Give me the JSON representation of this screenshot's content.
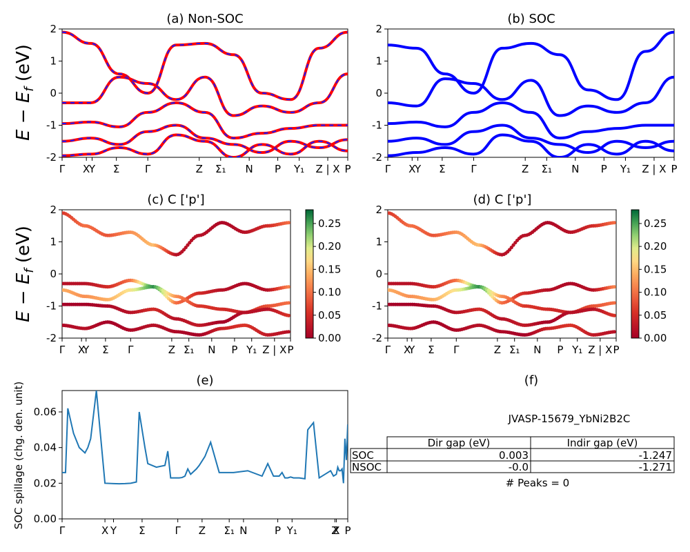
{
  "titles": {
    "a": "(a) Non-SOC",
    "b": "(b) SOC",
    "c": "(c)  C ['p']",
    "d": "(d) C ['p']",
    "e": "(e)",
    "f": "(f)"
  },
  "ylabel_energy": "E − E_f (eV)",
  "ylabel_spillage": "SOC spillage (chg. den. unit)",
  "colors": {
    "nonsoc_red": "#ff0000",
    "nonsoc_blue": "#1a1aff",
    "soc_blue": "#0000ff",
    "spillage_line": "#1f77b4"
  },
  "band_xticks": [
    "Γ",
    "X",
    "Y",
    "Σ",
    "Γ",
    "Z",
    "Σ₁",
    "N",
    "P",
    "Y₁",
    "Z | X",
    "P"
  ],
  "spill_xticks": [
    "Γ",
    "X",
    "Y",
    "Σ",
    "Γ",
    "Z",
    "Σ₁",
    "N",
    "P",
    "Y₁",
    "Z",
    "X",
    "P"
  ],
  "colorbar_ticks": [
    "0.00",
    "0.05",
    "0.10",
    "0.15",
    "0.20",
    "0.25"
  ],
  "table": {
    "title": "JVASP-15679_YbNi2B2C",
    "col_headers": [
      "Dir gap (eV)",
      "Indir gap (eV)"
    ],
    "rows": [
      {
        "label": "SOC",
        "dir": "0.003",
        "indir": "-1.247"
      },
      {
        "label": "NSOC",
        "dir": "-0.0",
        "indir": "-1.271"
      }
    ],
    "peaks": "# Peaks = 0"
  },
  "chart_data": [
    {
      "type": "line",
      "title": "(a) Non-SOC",
      "ylabel": "E − E_f (eV)",
      "ylim": [
        -2,
        2
      ],
      "yticks": [
        -2,
        -1,
        0,
        1,
        2
      ],
      "xticks": [
        "Γ",
        "X",
        "Y",
        "Σ",
        "Γ",
        "Z",
        "Σ₁",
        "N",
        "P",
        "Y₁",
        "Z | X",
        "P"
      ],
      "x": [
        0,
        0.1,
        0.2,
        0.3,
        0.4,
        0.5,
        0.6,
        0.7,
        0.8,
        0.9,
        1.0
      ],
      "series": [
        {
          "values": [
            1.9,
            1.55,
            0.6,
            0.0,
            1.5,
            1.55,
            1.2,
            0.0,
            -0.2,
            1.4,
            1.9
          ]
        },
        {
          "values": [
            -0.3,
            -0.3,
            0.5,
            0.3,
            -0.2,
            0.5,
            -0.7,
            -0.4,
            -0.6,
            -0.3,
            0.6
          ]
        },
        {
          "values": [
            -0.95,
            -0.9,
            -1.05,
            -0.6,
            -0.3,
            -0.6,
            -1.4,
            -1.25,
            -1.1,
            -1.0,
            -1.0
          ]
        },
        {
          "values": [
            -1.5,
            -1.4,
            -1.6,
            -1.2,
            -1.0,
            -1.4,
            -1.6,
            -1.85,
            -1.5,
            -1.7,
            -1.45
          ]
        },
        {
          "values": [
            -1.95,
            -1.9,
            -1.7,
            -1.9,
            -1.3,
            -1.5,
            -2.0,
            -1.6,
            -1.9,
            -1.5,
            -1.8
          ]
        }
      ]
    },
    {
      "type": "line",
      "title": "(b) SOC",
      "ylim": [
        -2,
        2
      ],
      "yticks": [
        -2,
        -1,
        0,
        1,
        2
      ],
      "xticks": [
        "Γ",
        "X",
        "Y",
        "Σ",
        "Γ",
        "Z",
        "Σ₁",
        "N",
        "P",
        "Y₁",
        "Z | X",
        "P"
      ],
      "x": [
        0,
        0.1,
        0.2,
        0.3,
        0.4,
        0.5,
        0.6,
        0.7,
        0.8,
        0.9,
        1.0
      ],
      "series": [
        {
          "values": [
            1.5,
            1.4,
            0.6,
            0.0,
            1.4,
            1.55,
            1.2,
            0.1,
            -0.2,
            1.3,
            1.9
          ]
        },
        {
          "values": [
            -0.3,
            -0.4,
            0.45,
            0.3,
            -0.2,
            0.4,
            -0.7,
            -0.4,
            -0.6,
            -0.3,
            0.5
          ]
        },
        {
          "values": [
            -0.95,
            -0.9,
            -1.05,
            -0.6,
            -0.3,
            -0.6,
            -1.4,
            -1.2,
            -1.1,
            -1.0,
            -1.0
          ]
        },
        {
          "values": [
            -1.5,
            -1.4,
            -1.6,
            -1.2,
            -1.0,
            -1.4,
            -1.6,
            -1.85,
            -1.5,
            -1.7,
            -1.5
          ]
        },
        {
          "values": [
            -1.95,
            -1.85,
            -1.7,
            -1.9,
            -1.3,
            -1.5,
            -2.0,
            -1.6,
            -1.9,
            -1.5,
            -1.8
          ]
        }
      ]
    },
    {
      "type": "scatter",
      "title": "(c)  C ['p']",
      "ylabel": "E − E_f (eV)",
      "ylim": [
        -2,
        2
      ],
      "yticks": [
        -2,
        -1,
        0,
        1,
        2
      ],
      "colorbar": [
        0.0,
        0.28
      ],
      "xticks": [
        "Γ",
        "X",
        "Y",
        "Σ",
        "Γ",
        "Z",
        "Σ₁",
        "N",
        "P",
        "Y₁",
        "Z | X",
        "P"
      ],
      "x": [
        0,
        0.1,
        0.2,
        0.3,
        0.4,
        0.5,
        0.6,
        0.7,
        0.8,
        0.9,
        1.0
      ],
      "series": [
        {
          "values": [
            1.9,
            1.5,
            1.2,
            1.3,
            0.9,
            0.6,
            1.2,
            1.6,
            1.3,
            1.5,
            1.6
          ],
          "weights": [
            0.06,
            0.1,
            0.08,
            0.12,
            0.15,
            0.02,
            0.02,
            0.01,
            0.02,
            0.05,
            0.1
          ]
        },
        {
          "values": [
            -0.3,
            -0.3,
            -0.4,
            -0.2,
            -0.4,
            -0.9,
            -0.6,
            -0.5,
            -0.3,
            -0.5,
            -0.4
          ],
          "weights": [
            0.02,
            0.02,
            0.05,
            0.1,
            0.28,
            0.1,
            0.05,
            0.02,
            0.01,
            0.02,
            0.12
          ]
        },
        {
          "values": [
            -0.5,
            -0.7,
            -0.8,
            -0.5,
            -0.4,
            -0.7,
            -1.0,
            -1.1,
            -1.2,
            -1.0,
            -0.9
          ],
          "weights": [
            0.14,
            0.12,
            0.14,
            0.18,
            0.26,
            0.12,
            0.06,
            0.05,
            0.04,
            0.08,
            0.1
          ]
        },
        {
          "values": [
            -0.95,
            -0.95,
            -1.0,
            -1.2,
            -1.1,
            -1.4,
            -1.6,
            -1.5,
            -1.2,
            -1.1,
            -1.3
          ],
          "weights": [
            0.0,
            0.0,
            0.01,
            0.02,
            0.05,
            0.02,
            0.03,
            0.0,
            0.02,
            0.02,
            0.06
          ]
        },
        {
          "values": [
            -1.6,
            -1.7,
            -1.5,
            -1.75,
            -1.6,
            -1.8,
            -1.9,
            -1.7,
            -1.6,
            -1.9,
            -1.8
          ],
          "weights": [
            0.01,
            0.02,
            0.0,
            0.01,
            0.02,
            0.01,
            0.0,
            0.04,
            0.06,
            0.03,
            0.02
          ]
        }
      ]
    },
    {
      "type": "scatter",
      "title": "(d) C ['p']",
      "ylim": [
        -2,
        2
      ],
      "yticks": [
        -2,
        -1,
        0,
        1,
        2
      ],
      "colorbar": [
        0.0,
        0.28
      ],
      "xticks": [
        "Γ",
        "X",
        "Y",
        "Σ",
        "Γ",
        "Z",
        "Σ₁",
        "N",
        "P",
        "Y₁",
        "Z | X",
        "P"
      ],
      "x": [
        0,
        0.1,
        0.2,
        0.3,
        0.4,
        0.5,
        0.6,
        0.7,
        0.8,
        0.9,
        1.0
      ],
      "series": [
        {
          "values": [
            1.9,
            1.5,
            1.2,
            1.3,
            0.9,
            0.6,
            1.2,
            1.6,
            1.3,
            1.5,
            1.6
          ],
          "weights": [
            0.06,
            0.1,
            0.08,
            0.12,
            0.15,
            0.02,
            0.02,
            0.01,
            0.02,
            0.05,
            0.1
          ]
        },
        {
          "values": [
            -0.3,
            -0.3,
            -0.4,
            -0.2,
            -0.4,
            -0.9,
            -0.6,
            -0.5,
            -0.3,
            -0.5,
            -0.4
          ],
          "weights": [
            0.02,
            0.02,
            0.05,
            0.1,
            0.28,
            0.1,
            0.05,
            0.02,
            0.01,
            0.02,
            0.12
          ]
        },
        {
          "values": [
            -0.5,
            -0.7,
            -0.8,
            -0.5,
            -0.4,
            -0.7,
            -1.0,
            -1.1,
            -1.2,
            -1.0,
            -0.9
          ],
          "weights": [
            0.14,
            0.12,
            0.14,
            0.18,
            0.26,
            0.12,
            0.06,
            0.05,
            0.04,
            0.08,
            0.1
          ]
        },
        {
          "values": [
            -0.95,
            -0.95,
            -1.0,
            -1.2,
            -1.1,
            -1.4,
            -1.6,
            -1.5,
            -1.2,
            -1.1,
            -1.3
          ],
          "weights": [
            0.0,
            0.0,
            0.01,
            0.02,
            0.05,
            0.02,
            0.03,
            0.0,
            0.02,
            0.02,
            0.06
          ]
        },
        {
          "values": [
            -1.6,
            -1.7,
            -1.5,
            -1.75,
            -1.6,
            -1.8,
            -1.9,
            -1.7,
            -1.6,
            -1.9,
            -1.8
          ],
          "weights": [
            0.01,
            0.02,
            0.0,
            0.01,
            0.02,
            0.01,
            0.0,
            0.04,
            0.06,
            0.03,
            0.02
          ]
        }
      ]
    },
    {
      "type": "line",
      "title": "(e)",
      "ylabel": "SOC spillage (chg. den. unit)",
      "ylim": [
        0,
        0.072
      ],
      "yticks": [
        0.0,
        0.02,
        0.04,
        0.06
      ],
      "xticks": [
        "Γ",
        "X",
        "Y",
        "Σ",
        "Γ",
        "Z",
        "Σ₁",
        "N",
        "P",
        "Y₁",
        "Z",
        "X",
        "P"
      ],
      "x": [
        0,
        0.012,
        0.02,
        0.04,
        0.06,
        0.08,
        0.09,
        0.1,
        0.12,
        0.15,
        0.18,
        0.2,
        0.22,
        0.24,
        0.26,
        0.27,
        0.29,
        0.3,
        0.33,
        0.36,
        0.37,
        0.38,
        0.4,
        0.41,
        0.42,
        0.43,
        0.44,
        0.45,
        0.47,
        0.48,
        0.5,
        0.52,
        0.55,
        0.6,
        0.65,
        0.7,
        0.72,
        0.74,
        0.76,
        0.77,
        0.78,
        0.79,
        0.8,
        0.81,
        0.83,
        0.85,
        0.86,
        0.88,
        0.9,
        0.92,
        0.94,
        0.95,
        0.96,
        0.965,
        0.97,
        0.975,
        0.98,
        0.985,
        0.99,
        0.995,
        1.0
      ],
      "values": [
        0.026,
        0.026,
        0.062,
        0.048,
        0.04,
        0.037,
        0.04,
        0.045,
        0.072,
        0.02,
        0.0198,
        0.0197,
        0.0198,
        0.02,
        0.0207,
        0.06,
        0.04,
        0.031,
        0.029,
        0.03,
        0.038,
        0.023,
        0.023,
        0.023,
        0.0232,
        0.024,
        0.028,
        0.025,
        0.028,
        0.03,
        0.035,
        0.043,
        0.026,
        0.026,
        0.027,
        0.024,
        0.031,
        0.024,
        0.024,
        0.026,
        0.023,
        0.023,
        0.0235,
        0.023,
        0.023,
        0.0225,
        0.05,
        0.054,
        0.023,
        0.025,
        0.027,
        0.024,
        0.025,
        0.029,
        0.027,
        0.027,
        0.028,
        0.02,
        0.045,
        0.033,
        0.053
      ]
    }
  ]
}
